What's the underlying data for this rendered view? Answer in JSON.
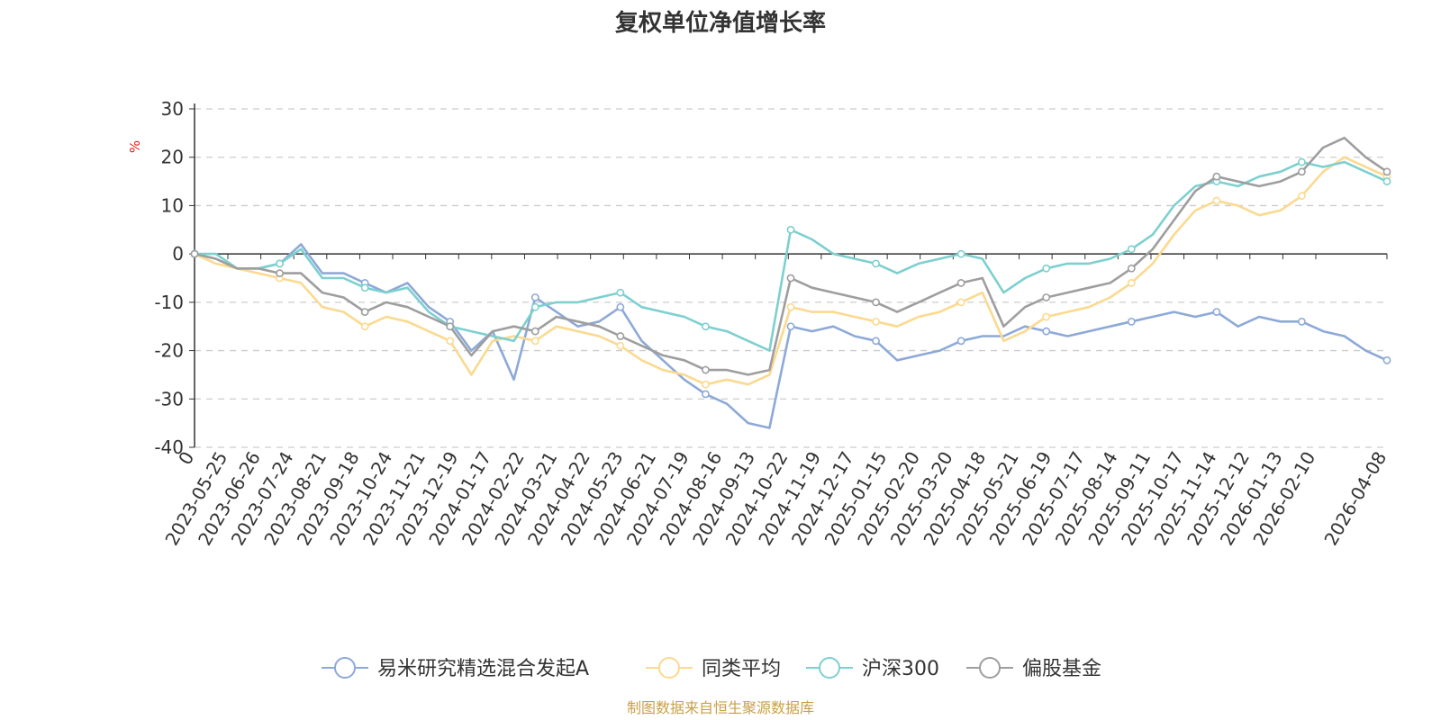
{
  "chart_data": {
    "type": "line",
    "title": "复权单位净值增长率",
    "ylabel": "%",
    "ylim": [
      -40,
      30
    ],
    "yticks": [
      -40,
      -30,
      -20,
      -10,
      0,
      10,
      20,
      30
    ],
    "x_start_label": "0",
    "x_tick_labels": [
      "2023-05-25",
      "2023-06-26",
      "2023-07-24",
      "2023-08-21",
      "2023-09-18",
      "2023-10-24",
      "2023-11-21",
      "2023-12-19",
      "2024-01-17",
      "2024-02-22",
      "2024-03-21",
      "2024-04-22",
      "2024-05-23",
      "2024-06-21",
      "2024-07-19",
      "2024-08-16",
      "2024-09-13",
      "2024-10-22",
      "2024-11-19",
      "2024-12-17",
      "2025-01-15",
      "2025-02-20",
      "2025-03-20",
      "2025-04-18",
      "2025-05-21",
      "2025-06-19",
      "2025-07-17",
      "2025-08-14",
      "2025-09-11",
      "2025-10-17",
      "2025-11-14",
      "2025-12-12",
      "2026-01-13",
      "2026-02-10",
      "2026-04-08"
    ],
    "grid": true,
    "legend_position": "bottom",
    "series": [
      {
        "name": "易米研究精选混合发起A",
        "color": "#8da9d8",
        "values": [
          0,
          -1,
          -3,
          -3,
          -2,
          2,
          -4,
          -4,
          -6,
          -8,
          -6,
          -11,
          -14,
          -20,
          -16,
          -26,
          -9,
          -12,
          -15,
          -14,
          -11,
          -18,
          -22,
          -26,
          -29,
          -31,
          -35,
          -36,
          -15,
          -16,
          -15,
          -17,
          -18,
          -22,
          -21,
          -20,
          -18,
          -17,
          -17,
          -15,
          -16,
          -17,
          -16,
          -15,
          -14,
          -13,
          -12,
          -13,
          -12,
          -15,
          -13,
          -14,
          -14,
          -16,
          -17,
          -20,
          -22
        ]
      },
      {
        "name": "同类平均",
        "color": "#fbd98f",
        "values": [
          0,
          -2,
          -3,
          -4,
          -5,
          -6,
          -11,
          -12,
          -15,
          -13,
          -14,
          -16,
          -18,
          -25,
          -18,
          -17,
          -18,
          -15,
          -16,
          -17,
          -19,
          -22,
          -24,
          -25,
          -27,
          -26,
          -27,
          -25,
          -11,
          -12,
          -12,
          -13,
          -14,
          -15,
          -13,
          -12,
          -10,
          -8,
          -18,
          -16,
          -13,
          -12,
          -11,
          -9,
          -6,
          -2,
          4,
          9,
          11,
          10,
          8,
          9,
          12,
          17,
          20,
          18,
          16
        ]
      },
      {
        "name": "沪深300",
        "color": "#7dd0cf",
        "values": [
          0,
          0,
          -3,
          -3,
          -2,
          1,
          -5,
          -5,
          -7,
          -8,
          -7,
          -12,
          -15,
          -16,
          -17,
          -18,
          -11,
          -10,
          -10,
          -9,
          -8,
          -11,
          -12,
          -13,
          -15,
          -16,
          -18,
          -20,
          5,
          3,
          0,
          -1,
          -2,
          -4,
          -2,
          -1,
          0,
          -1,
          -8,
          -5,
          -3,
          -2,
          -2,
          -1,
          1,
          4,
          10,
          14,
          15,
          14,
          16,
          17,
          19,
          18,
          19,
          17,
          15
        ]
      },
      {
        "name": "偏股基金",
        "color": "#9e9e9e",
        "values": [
          0,
          -1,
          -3,
          -3,
          -4,
          -4,
          -8,
          -9,
          -12,
          -10,
          -11,
          -13,
          -15,
          -21,
          -16,
          -15,
          -16,
          -13,
          -14,
          -15,
          -17,
          -19,
          -21,
          -22,
          -24,
          -24,
          -25,
          -24,
          -5,
          -7,
          -8,
          -9,
          -10,
          -12,
          -10,
          -8,
          -6,
          -5,
          -15,
          -11,
          -9,
          -8,
          -7,
          -6,
          -3,
          1,
          7,
          13,
          16,
          15,
          14,
          15,
          17,
          22,
          24,
          20,
          17
        ]
      }
    ]
  },
  "footer": {
    "source_text": "制图数据来自恒生聚源数据库"
  }
}
